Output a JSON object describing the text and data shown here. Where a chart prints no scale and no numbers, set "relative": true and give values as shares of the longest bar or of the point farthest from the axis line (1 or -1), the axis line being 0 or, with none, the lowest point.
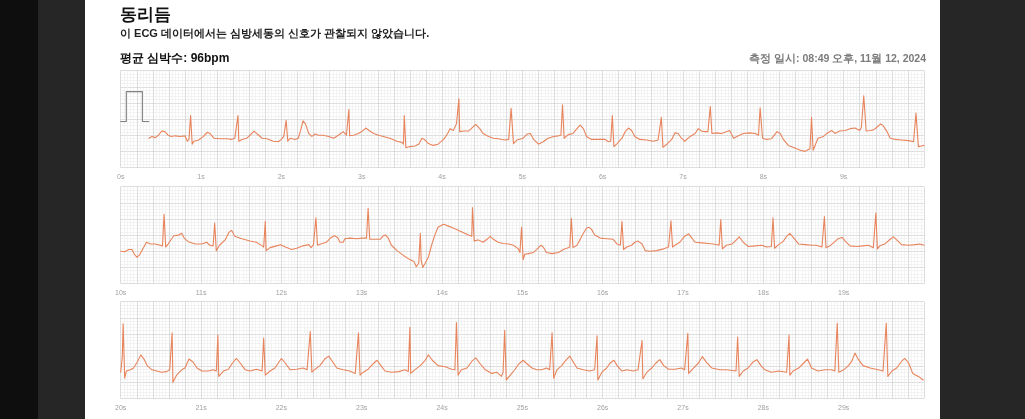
{
  "chart_data": [
    {
      "type": "line",
      "title": "동리듬",
      "subtitle": "이 ECG 데이터에서는 심방세동의 신호가 관찰되지 않았습니다.",
      "annotations": [
        "평균 심박수: 96bpm",
        "측정 일시: 08:49 오후, 11월 12, 2024"
      ],
      "relative": true,
      "grid": true,
      "xlim": [
        0,
        10
      ],
      "xticks": [
        {
          "value": 0,
          "label": "0s"
        },
        {
          "value": 0.2,
          "label": null
        },
        {
          "value": 0.4,
          "label": null
        },
        {
          "value": 0.6,
          "label": null
        },
        {
          "value": 0.8,
          "label": null
        },
        {
          "value": 1,
          "label": "1s"
        },
        {
          "value": 1.2,
          "label": null
        },
        {
          "value": 1.4,
          "label": null
        },
        {
          "value": 1.6,
          "label": null
        },
        {
          "value": 1.8,
          "label": null
        },
        {
          "value": 2,
          "label": "2s"
        },
        {
          "value": 2.2,
          "label": null
        },
        {
          "value": 2.4,
          "label": null
        },
        {
          "value": 2.6,
          "label": null
        },
        {
          "value": 2.8,
          "label": null
        },
        {
          "value": 3,
          "label": "3s"
        },
        {
          "value": 3.2,
          "label": null
        },
        {
          "value": 3.4,
          "label": null
        },
        {
          "value": 3.6,
          "label": null
        },
        {
          "value": 3.8,
          "label": null
        },
        {
          "value": 4,
          "label": "4s"
        },
        {
          "value": 4.2,
          "label": null
        },
        {
          "value": 4.4,
          "label": null
        },
        {
          "value": 4.6,
          "label": null
        },
        {
          "value": 4.8,
          "label": null
        },
        {
          "value": 5,
          "label": "5s"
        },
        {
          "value": 5.2,
          "label": null
        },
        {
          "value": 5.4,
          "label": null
        },
        {
          "value": 5.6,
          "label": null
        },
        {
          "value": 5.8,
          "label": null
        },
        {
          "value": 6,
          "label": "6s"
        },
        {
          "value": 6.2,
          "label": null
        },
        {
          "value": 6.4,
          "label": null
        },
        {
          "value": 6.6,
          "label": null
        },
        {
          "value": 6.8,
          "label": null
        },
        {
          "value": 7,
          "label": "7s"
        },
        {
          "value": 7.2,
          "label": null
        },
        {
          "value": 7.4,
          "label": null
        },
        {
          "value": 7.6,
          "label": null
        },
        {
          "value": 7.8,
          "label": null
        },
        {
          "value": 8,
          "label": "8s"
        },
        {
          "value": 8.2,
          "label": null
        },
        {
          "value": 8.4,
          "label": null
        },
        {
          "value": 8.6,
          "label": null
        },
        {
          "value": 8.8,
          "label": null
        },
        {
          "value": 9,
          "label": "9s"
        },
        {
          "value": 9.2,
          "label": null
        },
        {
          "value": 9.4,
          "label": null
        },
        {
          "value": 9.6,
          "label": null
        },
        {
          "value": 9.8,
          "label": null
        }
      ],
      "series": [
        {
          "color": "#808080",
          "x": [
            0,
            0.07,
            0.07,
            0.27,
            0.27,
            0.35
          ],
          "values": [
            0.5,
            0.5,
            1,
            1,
            0.5,
            0.5
          ]
        },
        {
          "color": "#e8845c",
          "x": [
            0.35,
            0.39,
            0.43,
            0.47,
            0.51,
            0.55,
            0.59,
            0.63,
            0.68,
            0.74,
            0.8,
            0.83,
            0.85,
            0.87,
            0.89,
            0.91,
            0.97,
            1.03,
            1.08,
            1.11,
            1.16,
            1.24,
            1.32,
            1.38,
            1.42,
            1.46,
            1.47,
            1.51,
            1.57,
            1.61,
            1.66,
            1.7,
            1.76,
            1.82,
            1.9,
            1.96,
            2.0,
            2.03,
            2.06,
            2.08,
            2.11,
            2.17,
            2.21,
            2.24,
            2.27,
            2.3,
            2.34,
            2.38,
            2.42,
            2.46,
            2.52,
            2.59,
            2.65,
            2.71,
            2.77,
            2.81,
            2.84,
            2.85,
            2.9,
            2.96,
            3.02,
            3.05,
            3.1,
            3.15,
            3.21,
            3.27,
            3.35,
            3.44,
            3.5,
            3.52,
            3.53,
            3.55,
            3.6,
            3.66,
            3.71,
            3.75,
            3.78,
            3.83,
            3.89,
            3.95,
            4.02,
            4.07,
            4.1,
            4.14,
            4.18,
            4.21,
            4.22,
            4.27,
            4.33,
            4.37,
            4.42,
            4.47,
            4.51,
            4.58,
            4.64,
            4.7,
            4.78,
            4.83,
            4.86,
            4.89,
            4.93,
            5.01,
            5.06,
            5.1,
            5.14,
            5.2,
            5.26,
            5.32,
            5.39,
            5.45,
            5.48,
            5.5,
            5.52,
            5.57,
            5.63,
            5.68,
            5.72,
            5.76,
            5.8,
            5.86,
            5.95,
            6.03,
            6.07,
            6.1,
            6.12,
            6.14,
            6.18,
            6.24,
            6.28,
            6.32,
            6.36,
            6.4,
            6.46,
            6.55,
            6.63,
            6.69,
            6.73,
            6.75,
            6.8,
            6.86,
            6.9,
            6.94,
            6.98,
            7.02,
            7.09,
            7.15,
            7.19,
            7.23,
            7.27,
            7.31,
            7.34,
            7.36,
            7.42,
            7.48,
            7.54,
            7.58,
            7.63,
            7.69,
            7.75,
            7.83,
            7.9,
            7.94,
            7.96,
            7.99,
            8.04,
            8.1,
            8.17,
            8.21,
            8.25,
            8.31,
            8.37,
            8.46,
            8.52,
            8.56,
            8.58,
            8.6,
            8.62,
            8.68,
            8.75,
            8.79,
            8.85,
            8.89,
            8.95,
            9.02,
            9.08,
            9.14,
            9.2,
            9.22,
            9.25,
            9.28,
            9.33,
            9.37,
            9.41,
            9.46,
            9.49,
            9.54,
            9.58,
            9.64,
            9.72,
            9.81,
            9.87,
            9.9,
            9.93,
            9.97,
            10.0
          ],
          "values": [
            0.22,
            0.25,
            0.23,
            0.27,
            0.34,
            0.33,
            0.27,
            0.25,
            0.26,
            0.25,
            0.26,
            0.17,
            0.2,
            0.6,
            0.12,
            0.17,
            0.19,
            0.25,
            0.32,
            0.3,
            0.22,
            0.21,
            0.21,
            0.2,
            0.22,
            0.6,
            0.17,
            0.2,
            0.22,
            0.27,
            0.34,
            0.29,
            0.22,
            0.21,
            0.17,
            0.16,
            0.2,
            0.25,
            0.52,
            0.17,
            0.22,
            0.2,
            0.22,
            0.35,
            0.51,
            0.46,
            0.3,
            0.25,
            0.29,
            0.27,
            0.27,
            0.25,
            0.22,
            0.27,
            0.33,
            0.27,
            0.7,
            0.26,
            0.27,
            0.3,
            0.35,
            0.39,
            0.34,
            0.3,
            0.27,
            0.25,
            0.22,
            0.17,
            0.15,
            0.12,
            0.6,
            0.06,
            0.08,
            0.09,
            0.12,
            0.22,
            0.2,
            0.13,
            0.1,
            0.12,
            0.2,
            0.3,
            0.38,
            0.35,
            0.46,
            0.88,
            0.33,
            0.34,
            0.34,
            0.39,
            0.45,
            0.38,
            0.3,
            0.25,
            0.22,
            0.21,
            0.19,
            0.2,
            0.72,
            0.13,
            0.19,
            0.22,
            0.29,
            0.3,
            0.2,
            0.12,
            0.16,
            0.22,
            0.25,
            0.26,
            0.27,
            0.78,
            0.22,
            0.28,
            0.3,
            0.38,
            0.44,
            0.38,
            0.25,
            0.2,
            0.2,
            0.2,
            0.16,
            0.17,
            0.6,
            0.08,
            0.13,
            0.22,
            0.33,
            0.39,
            0.35,
            0.25,
            0.2,
            0.19,
            0.17,
            0.19,
            0.57,
            0.07,
            0.12,
            0.2,
            0.31,
            0.3,
            0.22,
            0.17,
            0.25,
            0.3,
            0.38,
            0.34,
            0.33,
            0.33,
            0.75,
            0.3,
            0.31,
            0.3,
            0.33,
            0.35,
            0.22,
            0.26,
            0.3,
            0.31,
            0.3,
            0.27,
            0.73,
            0.22,
            0.2,
            0.21,
            0.33,
            0.3,
            0.2,
            0.1,
            0.07,
            0.02,
            0.0,
            0.03,
            0.04,
            0.57,
            0.02,
            0.22,
            0.25,
            0.3,
            0.35,
            0.3,
            0.34,
            0.35,
            0.38,
            0.39,
            0.35,
            0.4,
            0.93,
            0.34,
            0.35,
            0.36,
            0.4,
            0.46,
            0.43,
            0.33,
            0.22,
            0.2,
            0.19,
            0.18,
            0.16,
            0.64,
            0.08,
            0.09,
            0.1
          ]
        }
      ]
    },
    {
      "type": "line",
      "relative": true,
      "grid": true,
      "xlim": [
        10,
        20
      ],
      "xticks": [
        {
          "value": 10,
          "label": "10s"
        },
        {
          "value": 10.2,
          "label": null
        },
        {
          "value": 10.4,
          "label": null
        },
        {
          "value": 10.6,
          "label": null
        },
        {
          "value": 10.8,
          "label": null
        },
        {
          "value": 11,
          "label": "11s"
        },
        {
          "value": 11.2,
          "label": null
        },
        {
          "value": 11.4,
          "label": null
        },
        {
          "value": 11.6,
          "label": null
        },
        {
          "value": 11.8,
          "label": null
        },
        {
          "value": 12,
          "label": "12s"
        },
        {
          "value": 12.2,
          "label": null
        },
        {
          "value": 12.4,
          "label": null
        },
        {
          "value": 12.6,
          "label": null
        },
        {
          "value": 12.8,
          "label": null
        },
        {
          "value": 13,
          "label": "13s"
        },
        {
          "value": 13.2,
          "label": null
        },
        {
          "value": 13.4,
          "label": null
        },
        {
          "value": 13.6,
          "label": null
        },
        {
          "value": 13.8,
          "label": null
        },
        {
          "value": 14,
          "label": "14s"
        },
        {
          "value": 14.2,
          "label": null
        },
        {
          "value": 14.4,
          "label": null
        },
        {
          "value": 14.6,
          "label": null
        },
        {
          "value": 14.8,
          "label": null
        },
        {
          "value": 15,
          "label": "15s"
        },
        {
          "value": 15.2,
          "label": null
        },
        {
          "value": 15.4,
          "label": null
        },
        {
          "value": 15.6,
          "label": null
        },
        {
          "value": 15.8,
          "label": null
        },
        {
          "value": 16,
          "label": "16s"
        },
        {
          "value": 16.2,
          "label": null
        },
        {
          "value": 16.4,
          "label": null
        },
        {
          "value": 16.6,
          "label": null
        },
        {
          "value": 16.8,
          "label": null
        },
        {
          "value": 17,
          "label": "17s"
        },
        {
          "value": 17.2,
          "label": null
        },
        {
          "value": 17.4,
          "label": null
        },
        {
          "value": 17.6,
          "label": null
        },
        {
          "value": 17.8,
          "label": null
        },
        {
          "value": 18,
          "label": "18s"
        },
        {
          "value": 18.2,
          "label": null
        },
        {
          "value": 18.4,
          "label": null
        },
        {
          "value": 18.6,
          "label": null
        },
        {
          "value": 18.8,
          "label": null
        },
        {
          "value": 19,
          "label": "19s"
        },
        {
          "value": 19.2,
          "label": null
        },
        {
          "value": 19.4,
          "label": null
        },
        {
          "value": 19.6,
          "label": null
        },
        {
          "value": 19.8,
          "label": null
        }
      ],
      "color": "#e8845c",
      "x": [
        10.0,
        10.05,
        10.1,
        10.14,
        10.17,
        10.2,
        10.23,
        10.26,
        10.32,
        10.37,
        10.43,
        10.49,
        10.52,
        10.54,
        10.56,
        10.59,
        10.66,
        10.72,
        10.76,
        10.79,
        10.84,
        10.93,
        11.01,
        11.07,
        11.11,
        11.15,
        11.17,
        11.19,
        11.23,
        11.3,
        11.35,
        11.38,
        11.42,
        11.51,
        11.61,
        11.69,
        11.76,
        11.78,
        11.8,
        11.81,
        11.86,
        11.94,
        11.99,
        12.05,
        12.13,
        12.19,
        12.27,
        12.34,
        12.37,
        12.4,
        12.43,
        12.45,
        12.49,
        12.56,
        12.61,
        12.66,
        12.7,
        12.73,
        12.77,
        12.79,
        12.85,
        12.94,
        13.0,
        13.06,
        13.08,
        13.1,
        13.17,
        13.23,
        13.27,
        13.3,
        13.33,
        13.37,
        13.44,
        13.52,
        13.6,
        13.65,
        13.68,
        13.71,
        13.73,
        13.74,
        13.76,
        13.79,
        13.83,
        13.87,
        13.91,
        13.95,
        14.0,
        14.02,
        14.08,
        14.14,
        14.22,
        14.33,
        14.37,
        14.38,
        14.4,
        14.45,
        14.51,
        14.56,
        14.6,
        14.64,
        14.7,
        14.76,
        14.83,
        14.89,
        14.95,
        14.97,
        14.99,
        15.01,
        15.03,
        15.07,
        15.14,
        15.18,
        15.23,
        15.26,
        15.3,
        15.37,
        15.45,
        15.51,
        15.57,
        15.59,
        15.61,
        15.63,
        15.68,
        15.72,
        15.76,
        15.8,
        15.83,
        15.86,
        15.9,
        15.97,
        16.05,
        16.13,
        16.18,
        16.22,
        16.24,
        16.26,
        16.3,
        16.36,
        16.4,
        16.44,
        16.49,
        16.53,
        16.59,
        16.67,
        16.76,
        16.82,
        16.85,
        16.87,
        16.9,
        16.96,
        17.02,
        17.07,
        17.11,
        17.15,
        17.23,
        17.32,
        17.38,
        17.45,
        17.47,
        17.49,
        17.54,
        17.61,
        17.67,
        17.7,
        17.75,
        17.81,
        17.9,
        17.98,
        18.04,
        18.1,
        18.12,
        18.14,
        18.19,
        18.25,
        18.29,
        18.33,
        18.38,
        18.44,
        18.52,
        18.6,
        18.66,
        18.73,
        18.76,
        18.78,
        18.83,
        18.89,
        18.93,
        18.98,
        19.02,
        19.08,
        19.16,
        19.24,
        19.31,
        19.37,
        19.4,
        19.42,
        19.45,
        19.51,
        19.58,
        19.62,
        19.66,
        19.72,
        19.81,
        19.89,
        19.95,
        20.0
      ],
      "values": [
        0.27,
        0.26,
        0.3,
        0.3,
        0.22,
        0.17,
        0.2,
        0.27,
        0.42,
        0.39,
        0.39,
        0.37,
        0.36,
        0.89,
        0.34,
        0.39,
        0.53,
        0.54,
        0.57,
        0.49,
        0.43,
        0.39,
        0.39,
        0.42,
        0.37,
        0.36,
        0.74,
        0.28,
        0.37,
        0.46,
        0.59,
        0.62,
        0.52,
        0.48,
        0.44,
        0.42,
        0.36,
        0.34,
        0.77,
        0.28,
        0.33,
        0.36,
        0.38,
        0.34,
        0.3,
        0.32,
        0.36,
        0.38,
        0.33,
        0.38,
        0.83,
        0.37,
        0.39,
        0.42,
        0.49,
        0.53,
        0.5,
        0.42,
        0.42,
        0.48,
        0.49,
        0.48,
        0.49,
        0.49,
        0.99,
        0.47,
        0.47,
        0.47,
        0.53,
        0.54,
        0.49,
        0.37,
        0.28,
        0.2,
        0.13,
        0.1,
        0.01,
        0.07,
        0.57,
        0.12,
        0.0,
        0.07,
        0.17,
        0.37,
        0.54,
        0.67,
        0.71,
        0.72,
        0.69,
        0.66,
        0.61,
        0.54,
        0.52,
        1.0,
        0.44,
        0.46,
        0.42,
        0.47,
        0.52,
        0.47,
        0.42,
        0.4,
        0.39,
        0.37,
        0.31,
        0.25,
        0.67,
        0.13,
        0.22,
        0.23,
        0.25,
        0.3,
        0.37,
        0.34,
        0.25,
        0.23,
        0.25,
        0.3,
        0.33,
        0.34,
        0.82,
        0.33,
        0.37,
        0.47,
        0.57,
        0.66,
        0.67,
        0.64,
        0.54,
        0.49,
        0.48,
        0.47,
        0.39,
        0.37,
        0.77,
        0.3,
        0.34,
        0.37,
        0.42,
        0.44,
        0.39,
        0.28,
        0.27,
        0.28,
        0.31,
        0.34,
        0.78,
        0.34,
        0.37,
        0.42,
        0.52,
        0.56,
        0.49,
        0.42,
        0.41,
        0.4,
        0.39,
        0.37,
        0.8,
        0.31,
        0.37,
        0.39,
        0.47,
        0.51,
        0.42,
        0.35,
        0.36,
        0.37,
        0.34,
        0.35,
        0.83,
        0.32,
        0.38,
        0.44,
        0.52,
        0.57,
        0.49,
        0.39,
        0.38,
        0.37,
        0.37,
        0.34,
        0.85,
        0.33,
        0.36,
        0.43,
        0.48,
        0.5,
        0.44,
        0.36,
        0.35,
        0.36,
        0.37,
        0.33,
        0.91,
        0.31,
        0.36,
        0.39,
        0.47,
        0.51,
        0.46,
        0.38,
        0.37,
        0.38,
        0.39,
        0.37
      ]
    },
    {
      "type": "line",
      "relative": true,
      "grid": true,
      "xlim": [
        20,
        30
      ],
      "xticks": [
        {
          "value": 20,
          "label": "20s"
        },
        {
          "value": 20.2,
          "label": null
        },
        {
          "value": 20.4,
          "label": null
        },
        {
          "value": 20.6,
          "label": null
        },
        {
          "value": 20.8,
          "label": null
        },
        {
          "value": 21,
          "label": "21s"
        },
        {
          "value": 21.2,
          "label": null
        },
        {
          "value": 21.4,
          "label": null
        },
        {
          "value": 21.6,
          "label": null
        },
        {
          "value": 21.8,
          "label": null
        },
        {
          "value": 22,
          "label": "22s"
        },
        {
          "value": 22.2,
          "label": null
        },
        {
          "value": 22.4,
          "label": null
        },
        {
          "value": 22.6,
          "label": null
        },
        {
          "value": 22.8,
          "label": null
        },
        {
          "value": 23,
          "label": "23s"
        },
        {
          "value": 23.2,
          "label": null
        },
        {
          "value": 23.4,
          "label": null
        },
        {
          "value": 23.6,
          "label": null
        },
        {
          "value": 23.8,
          "label": null
        },
        {
          "value": 24,
          "label": "24s"
        },
        {
          "value": 24.2,
          "label": null
        },
        {
          "value": 24.4,
          "label": null
        },
        {
          "value": 24.6,
          "label": null
        },
        {
          "value": 24.8,
          "label": null
        },
        {
          "value": 25,
          "label": "25s"
        },
        {
          "value": 25.2,
          "label": null
        },
        {
          "value": 25.4,
          "label": null
        },
        {
          "value": 25.6,
          "label": null
        },
        {
          "value": 25.8,
          "label": null
        },
        {
          "value": 26,
          "label": "26s"
        },
        {
          "value": 26.2,
          "label": null
        },
        {
          "value": 26.4,
          "label": null
        },
        {
          "value": 26.6,
          "label": null
        },
        {
          "value": 26.8,
          "label": null
        },
        {
          "value": 27,
          "label": "27s"
        },
        {
          "value": 27.2,
          "label": null
        },
        {
          "value": 27.4,
          "label": null
        },
        {
          "value": 27.6,
          "label": null
        },
        {
          "value": 27.8,
          "label": null
        },
        {
          "value": 28,
          "label": "28s"
        },
        {
          "value": 28.2,
          "label": null
        },
        {
          "value": 28.4,
          "label": null
        },
        {
          "value": 28.6,
          "label": null
        },
        {
          "value": 28.8,
          "label": null
        },
        {
          "value": 29,
          "label": "29s"
        },
        {
          "value": 29.2,
          "label": null
        },
        {
          "value": 29.4,
          "label": null
        },
        {
          "value": 29.6,
          "label": null
        },
        {
          "value": 29.8,
          "label": null
        }
      ],
      "color": "#e8845c",
      "x": [
        20.0,
        20.02,
        20.03,
        20.05,
        20.07,
        20.12,
        20.16,
        20.21,
        20.25,
        20.29,
        20.33,
        20.39,
        20.45,
        20.51,
        20.57,
        20.61,
        20.64,
        20.65,
        20.7,
        20.76,
        20.8,
        20.85,
        20.9,
        20.95,
        21.01,
        21.09,
        21.15,
        21.19,
        21.21,
        21.22,
        21.28,
        21.34,
        21.39,
        21.44,
        21.49,
        21.55,
        21.61,
        21.69,
        21.76,
        21.78,
        21.8,
        21.86,
        21.92,
        21.96,
        22.0,
        22.05,
        22.11,
        22.19,
        22.27,
        22.32,
        22.36,
        22.38,
        22.42,
        22.48,
        22.54,
        22.59,
        22.64,
        22.69,
        22.77,
        22.85,
        22.92,
        22.96,
        22.98,
        23.02,
        23.08,
        23.15,
        23.19,
        23.24,
        23.29,
        23.37,
        23.46,
        23.54,
        23.58,
        23.6,
        23.61,
        23.66,
        23.73,
        23.79,
        23.83,
        23.88,
        23.95,
        24.04,
        24.12,
        24.16,
        24.18,
        24.2,
        24.24,
        24.31,
        24.37,
        24.42,
        24.47,
        24.54,
        24.62,
        24.68,
        24.74,
        24.76,
        24.78,
        24.8,
        24.85,
        24.91,
        24.95,
        25.01,
        25.05,
        25.12,
        25.18,
        25.24,
        25.3,
        25.34,
        25.37,
        25.39,
        25.43,
        25.49,
        25.53,
        25.59,
        25.63,
        25.68,
        25.76,
        25.84,
        25.9,
        25.93,
        25.94,
        25.99,
        26.05,
        26.09,
        26.14,
        26.18,
        26.24,
        26.3,
        26.38,
        26.44,
        26.49,
        26.5,
        26.55,
        26.61,
        26.66,
        26.71,
        26.76,
        26.82,
        26.9,
        26.98,
        27.02,
        27.06,
        27.07,
        27.13,
        27.19,
        27.24,
        27.29,
        27.36,
        27.46,
        27.54,
        27.66,
        27.68,
        27.7,
        27.75,
        27.81,
        27.87,
        27.92,
        27.97,
        28.02,
        28.1,
        28.19,
        28.29,
        28.32,
        28.33,
        28.37,
        28.44,
        28.5,
        28.55,
        28.6,
        28.68,
        28.77,
        28.85,
        28.89,
        28.92,
        28.94,
        29.0,
        29.06,
        29.1,
        29.14,
        29.18,
        29.24,
        29.33,
        29.43,
        29.49,
        29.53,
        29.55,
        29.6,
        29.66,
        29.72,
        29.76,
        29.81,
        29.86,
        29.93,
        29.99
      ],
      "values": [
        0.17,
        0.43,
        0.98,
        0.07,
        0.19,
        0.21,
        0.24,
        0.35,
        0.46,
        0.39,
        0.28,
        0.21,
        0.19,
        0.17,
        0.18,
        0.21,
        0.83,
        0.0,
        0.13,
        0.21,
        0.24,
        0.39,
        0.34,
        0.24,
        0.19,
        0.19,
        0.21,
        0.19,
        0.79,
        0.1,
        0.19,
        0.22,
        0.32,
        0.4,
        0.32,
        0.21,
        0.19,
        0.22,
        0.19,
        0.74,
        0.12,
        0.19,
        0.24,
        0.32,
        0.4,
        0.32,
        0.21,
        0.22,
        0.24,
        0.21,
        0.85,
        0.17,
        0.22,
        0.28,
        0.39,
        0.44,
        0.34,
        0.24,
        0.21,
        0.19,
        0.15,
        0.83,
        0.12,
        0.17,
        0.22,
        0.32,
        0.37,
        0.28,
        0.19,
        0.17,
        0.18,
        0.21,
        0.18,
        0.92,
        0.15,
        0.21,
        0.28,
        0.37,
        0.46,
        0.37,
        0.28,
        0.26,
        0.22,
        0.21,
        1.0,
        0.12,
        0.21,
        0.24,
        0.35,
        0.41,
        0.32,
        0.21,
        0.15,
        0.17,
        0.1,
        0.17,
        0.87,
        0.04,
        0.12,
        0.22,
        0.3,
        0.37,
        0.32,
        0.24,
        0.21,
        0.21,
        0.24,
        0.21,
        0.83,
        0.07,
        0.21,
        0.28,
        0.35,
        0.44,
        0.35,
        0.24,
        0.21,
        0.19,
        0.21,
        0.78,
        0.04,
        0.17,
        0.24,
        0.32,
        0.37,
        0.28,
        0.19,
        0.21,
        0.19,
        0.21,
        0.7,
        0.06,
        0.17,
        0.24,
        0.32,
        0.38,
        0.28,
        0.22,
        0.22,
        0.24,
        0.21,
        0.82,
        0.15,
        0.24,
        0.32,
        0.43,
        0.34,
        0.24,
        0.21,
        0.21,
        0.19,
        0.76,
        0.1,
        0.19,
        0.24,
        0.34,
        0.38,
        0.28,
        0.21,
        0.17,
        0.19,
        0.17,
        0.79,
        0.12,
        0.19,
        0.24,
        0.32,
        0.39,
        0.24,
        0.19,
        0.21,
        0.21,
        0.19,
        0.99,
        0.17,
        0.21,
        0.28,
        0.35,
        0.49,
        0.39,
        0.28,
        0.24,
        0.21,
        0.19,
        0.99,
        0.1,
        0.19,
        0.24,
        0.35,
        0.4,
        0.32,
        0.15,
        0.1,
        0.04
      ]
    }
  ]
}
